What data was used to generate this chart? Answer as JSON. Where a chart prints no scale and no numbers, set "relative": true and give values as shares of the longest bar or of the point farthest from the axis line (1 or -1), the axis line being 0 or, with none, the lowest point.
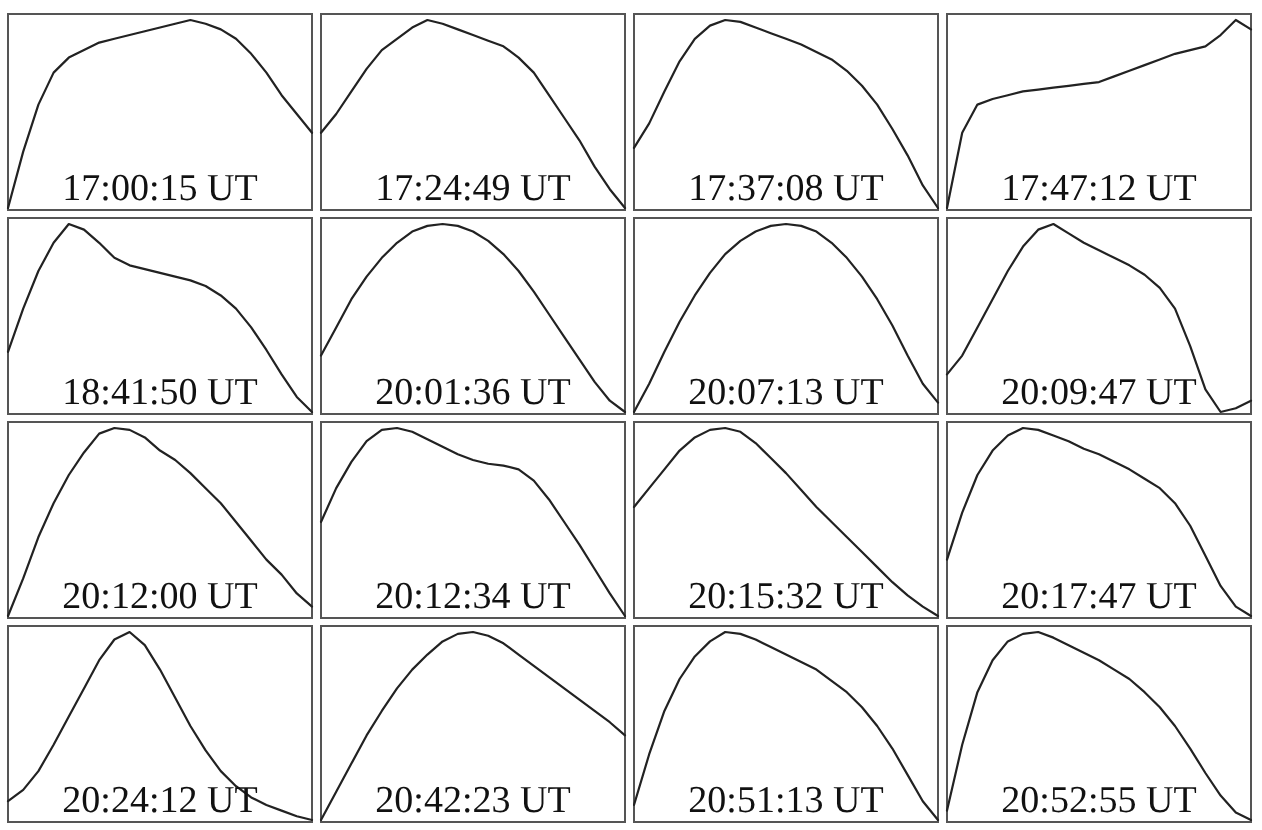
{
  "chart_data": [
    {
      "type": "line",
      "relative": true,
      "color": "#222222",
      "categories": [
        null,
        null,
        null,
        null,
        null,
        null,
        null,
        null,
        null,
        null,
        null,
        null,
        null,
        null,
        null,
        null,
        null,
        null,
        null,
        null,
        null
      ],
      "values": [
        0,
        0.3,
        0.55,
        0.72,
        0.8,
        0.84,
        0.88,
        0.9,
        0.92,
        0.94,
        0.96,
        0.98,
        1.0,
        0.98,
        0.95,
        0.9,
        0.82,
        0.72,
        0.6,
        0.5,
        0.4
      ],
      "annotations": [
        "17:00:15 UT"
      ]
    },
    {
      "type": "line",
      "relative": true,
      "color": "#222222",
      "categories": [
        null,
        null,
        null,
        null,
        null,
        null,
        null,
        null,
        null,
        null,
        null,
        null,
        null,
        null,
        null,
        null,
        null,
        null,
        null,
        null,
        null
      ],
      "values": [
        0.4,
        0.5,
        0.62,
        0.74,
        0.84,
        0.9,
        0.96,
        1.0,
        0.98,
        0.95,
        0.92,
        0.89,
        0.86,
        0.8,
        0.72,
        0.6,
        0.48,
        0.36,
        0.22,
        0.1,
        0
      ],
      "annotations": [
        "17:24:49 UT"
      ]
    },
    {
      "type": "line",
      "relative": true,
      "color": "#222222",
      "categories": [
        null,
        null,
        null,
        null,
        null,
        null,
        null,
        null,
        null,
        null,
        null,
        null,
        null,
        null,
        null,
        null,
        null,
        null,
        null,
        null,
        null
      ],
      "values": [
        0.32,
        0.45,
        0.62,
        0.78,
        0.9,
        0.97,
        1.0,
        0.99,
        0.96,
        0.93,
        0.9,
        0.87,
        0.83,
        0.79,
        0.73,
        0.65,
        0.55,
        0.42,
        0.28,
        0.12,
        0
      ],
      "annotations": [
        "17:37:08 UT"
      ]
    },
    {
      "type": "line",
      "relative": true,
      "color": "#222222",
      "categories": [
        null,
        null,
        null,
        null,
        null,
        null,
        null,
        null,
        null,
        null,
        null,
        null,
        null,
        null,
        null,
        null,
        null,
        null,
        null,
        null,
        null
      ],
      "values": [
        0,
        0.4,
        0.55,
        0.58,
        0.6,
        0.62,
        0.63,
        0.64,
        0.65,
        0.66,
        0.67,
        0.7,
        0.73,
        0.76,
        0.79,
        0.82,
        0.84,
        0.86,
        0.92,
        1.0,
        0.95
      ],
      "annotations": [
        "17:47:12 UT"
      ]
    },
    {
      "type": "line",
      "relative": true,
      "color": "#222222",
      "categories": [
        null,
        null,
        null,
        null,
        null,
        null,
        null,
        null,
        null,
        null,
        null,
        null,
        null,
        null,
        null,
        null,
        null,
        null,
        null,
        null,
        null
      ],
      "values": [
        0.32,
        0.55,
        0.75,
        0.9,
        1.0,
        0.97,
        0.9,
        0.82,
        0.78,
        0.76,
        0.74,
        0.72,
        0.7,
        0.67,
        0.62,
        0.55,
        0.45,
        0.33,
        0.2,
        0.08,
        0
      ],
      "annotations": [
        "18:41:50 UT"
      ]
    },
    {
      "type": "line",
      "relative": true,
      "color": "#222222",
      "categories": [
        null,
        null,
        null,
        null,
        null,
        null,
        null,
        null,
        null,
        null,
        null,
        null,
        null,
        null,
        null,
        null,
        null,
        null,
        null,
        null,
        null
      ],
      "values": [
        0.3,
        0.45,
        0.6,
        0.72,
        0.82,
        0.9,
        0.96,
        0.99,
        1.0,
        0.99,
        0.96,
        0.91,
        0.84,
        0.75,
        0.64,
        0.52,
        0.4,
        0.28,
        0.16,
        0.06,
        0
      ],
      "annotations": [
        "20:01:36 UT"
      ]
    },
    {
      "type": "line",
      "relative": true,
      "color": "#222222",
      "categories": [
        null,
        null,
        null,
        null,
        null,
        null,
        null,
        null,
        null,
        null,
        null,
        null,
        null,
        null,
        null,
        null,
        null,
        null,
        null,
        null,
        null
      ],
      "values": [
        0,
        0.15,
        0.32,
        0.48,
        0.62,
        0.74,
        0.84,
        0.91,
        0.96,
        0.99,
        1.0,
        0.99,
        0.96,
        0.9,
        0.82,
        0.72,
        0.6,
        0.46,
        0.3,
        0.15,
        0.05
      ],
      "annotations": [
        "20:07:13 UT"
      ]
    },
    {
      "type": "line",
      "relative": true,
      "color": "#222222",
      "categories": [
        null,
        null,
        null,
        null,
        null,
        null,
        null,
        null,
        null,
        null,
        null,
        null,
        null,
        null,
        null,
        null,
        null,
        null,
        null,
        null,
        null
      ],
      "values": [
        0.2,
        0.3,
        0.45,
        0.6,
        0.75,
        0.88,
        0.97,
        1.0,
        0.95,
        0.9,
        0.86,
        0.82,
        0.78,
        0.73,
        0.66,
        0.55,
        0.35,
        0.12,
        0,
        0.02,
        0.06
      ],
      "annotations": [
        "20:09:47 UT"
      ]
    },
    {
      "type": "line",
      "relative": true,
      "color": "#222222",
      "categories": [
        null,
        null,
        null,
        null,
        null,
        null,
        null,
        null,
        null,
        null,
        null,
        null,
        null,
        null,
        null,
        null,
        null,
        null,
        null,
        null,
        null
      ],
      "values": [
        0,
        0.2,
        0.42,
        0.6,
        0.75,
        0.87,
        0.97,
        1.0,
        0.99,
        0.95,
        0.88,
        0.83,
        0.76,
        0.68,
        0.6,
        0.5,
        0.4,
        0.3,
        0.22,
        0.12,
        0.05
      ],
      "annotations": [
        "20:12:00 UT"
      ]
    },
    {
      "type": "line",
      "relative": true,
      "color": "#222222",
      "categories": [
        null,
        null,
        null,
        null,
        null,
        null,
        null,
        null,
        null,
        null,
        null,
        null,
        null,
        null,
        null,
        null,
        null,
        null,
        null,
        null,
        null
      ],
      "values": [
        0.5,
        0.68,
        0.82,
        0.93,
        0.99,
        1.0,
        0.98,
        0.94,
        0.9,
        0.86,
        0.83,
        0.81,
        0.8,
        0.78,
        0.72,
        0.62,
        0.5,
        0.38,
        0.25,
        0.12,
        0
      ],
      "annotations": [
        "20:12:34 UT"
      ]
    },
    {
      "type": "line",
      "relative": true,
      "color": "#222222",
      "categories": [
        null,
        null,
        null,
        null,
        null,
        null,
        null,
        null,
        null,
        null,
        null,
        null,
        null,
        null,
        null,
        null,
        null,
        null,
        null,
        null,
        null
      ],
      "values": [
        0.58,
        0.68,
        0.78,
        0.88,
        0.95,
        0.99,
        1.0,
        0.98,
        0.92,
        0.84,
        0.76,
        0.67,
        0.58,
        0.5,
        0.42,
        0.34,
        0.26,
        0.18,
        0.11,
        0.05,
        0
      ],
      "annotations": [
        "20:15:32 UT"
      ]
    },
    {
      "type": "line",
      "relative": true,
      "color": "#222222",
      "categories": [
        null,
        null,
        null,
        null,
        null,
        null,
        null,
        null,
        null,
        null,
        null,
        null,
        null,
        null,
        null,
        null,
        null,
        null,
        null,
        null,
        null
      ],
      "values": [
        0.3,
        0.55,
        0.75,
        0.88,
        0.96,
        1.0,
        0.99,
        0.96,
        0.93,
        0.89,
        0.86,
        0.82,
        0.78,
        0.73,
        0.68,
        0.6,
        0.48,
        0.32,
        0.16,
        0.05,
        0
      ],
      "annotations": [
        "20:17:47 UT"
      ]
    },
    {
      "type": "line",
      "relative": true,
      "color": "#222222",
      "categories": [
        null,
        null,
        null,
        null,
        null,
        null,
        null,
        null,
        null,
        null,
        null,
        null,
        null,
        null,
        null,
        null,
        null,
        null,
        null,
        null,
        null
      ],
      "values": [
        0.1,
        0.16,
        0.26,
        0.4,
        0.55,
        0.7,
        0.85,
        0.96,
        1.0,
        0.93,
        0.8,
        0.65,
        0.5,
        0.37,
        0.26,
        0.18,
        0.12,
        0.08,
        0.05,
        0.02,
        0
      ],
      "annotations": [
        "20:24:12 UT"
      ]
    },
    {
      "type": "line",
      "relative": true,
      "color": "#222222",
      "categories": [
        null,
        null,
        null,
        null,
        null,
        null,
        null,
        null,
        null,
        null,
        null,
        null,
        null,
        null,
        null,
        null,
        null,
        null,
        null,
        null,
        null
      ],
      "values": [
        0,
        0.15,
        0.3,
        0.45,
        0.58,
        0.7,
        0.8,
        0.88,
        0.95,
        0.99,
        1.0,
        0.98,
        0.94,
        0.88,
        0.82,
        0.76,
        0.7,
        0.64,
        0.58,
        0.52,
        0.45
      ],
      "annotations": [
        "20:42:23 UT"
      ]
    },
    {
      "type": "line",
      "relative": true,
      "color": "#222222",
      "categories": [
        null,
        null,
        null,
        null,
        null,
        null,
        null,
        null,
        null,
        null,
        null,
        null,
        null,
        null,
        null,
        null,
        null,
        null,
        null,
        null,
        null
      ],
      "values": [
        0.08,
        0.35,
        0.58,
        0.75,
        0.87,
        0.95,
        1.0,
        0.99,
        0.96,
        0.92,
        0.88,
        0.84,
        0.8,
        0.74,
        0.68,
        0.6,
        0.5,
        0.38,
        0.24,
        0.1,
        0
      ],
      "annotations": [
        "20:51:13 UT"
      ]
    },
    {
      "type": "line",
      "relative": true,
      "color": "#222222",
      "categories": [
        null,
        null,
        null,
        null,
        null,
        null,
        null,
        null,
        null,
        null,
        null,
        null,
        null,
        null,
        null,
        null,
        null,
        null,
        null,
        null,
        null
      ],
      "values": [
        0.05,
        0.4,
        0.68,
        0.85,
        0.95,
        0.99,
        1.0,
        0.97,
        0.93,
        0.89,
        0.85,
        0.8,
        0.75,
        0.68,
        0.6,
        0.5,
        0.38,
        0.25,
        0.13,
        0.04,
        0
      ],
      "annotations": [
        "20:52:55 UT"
      ]
    }
  ]
}
